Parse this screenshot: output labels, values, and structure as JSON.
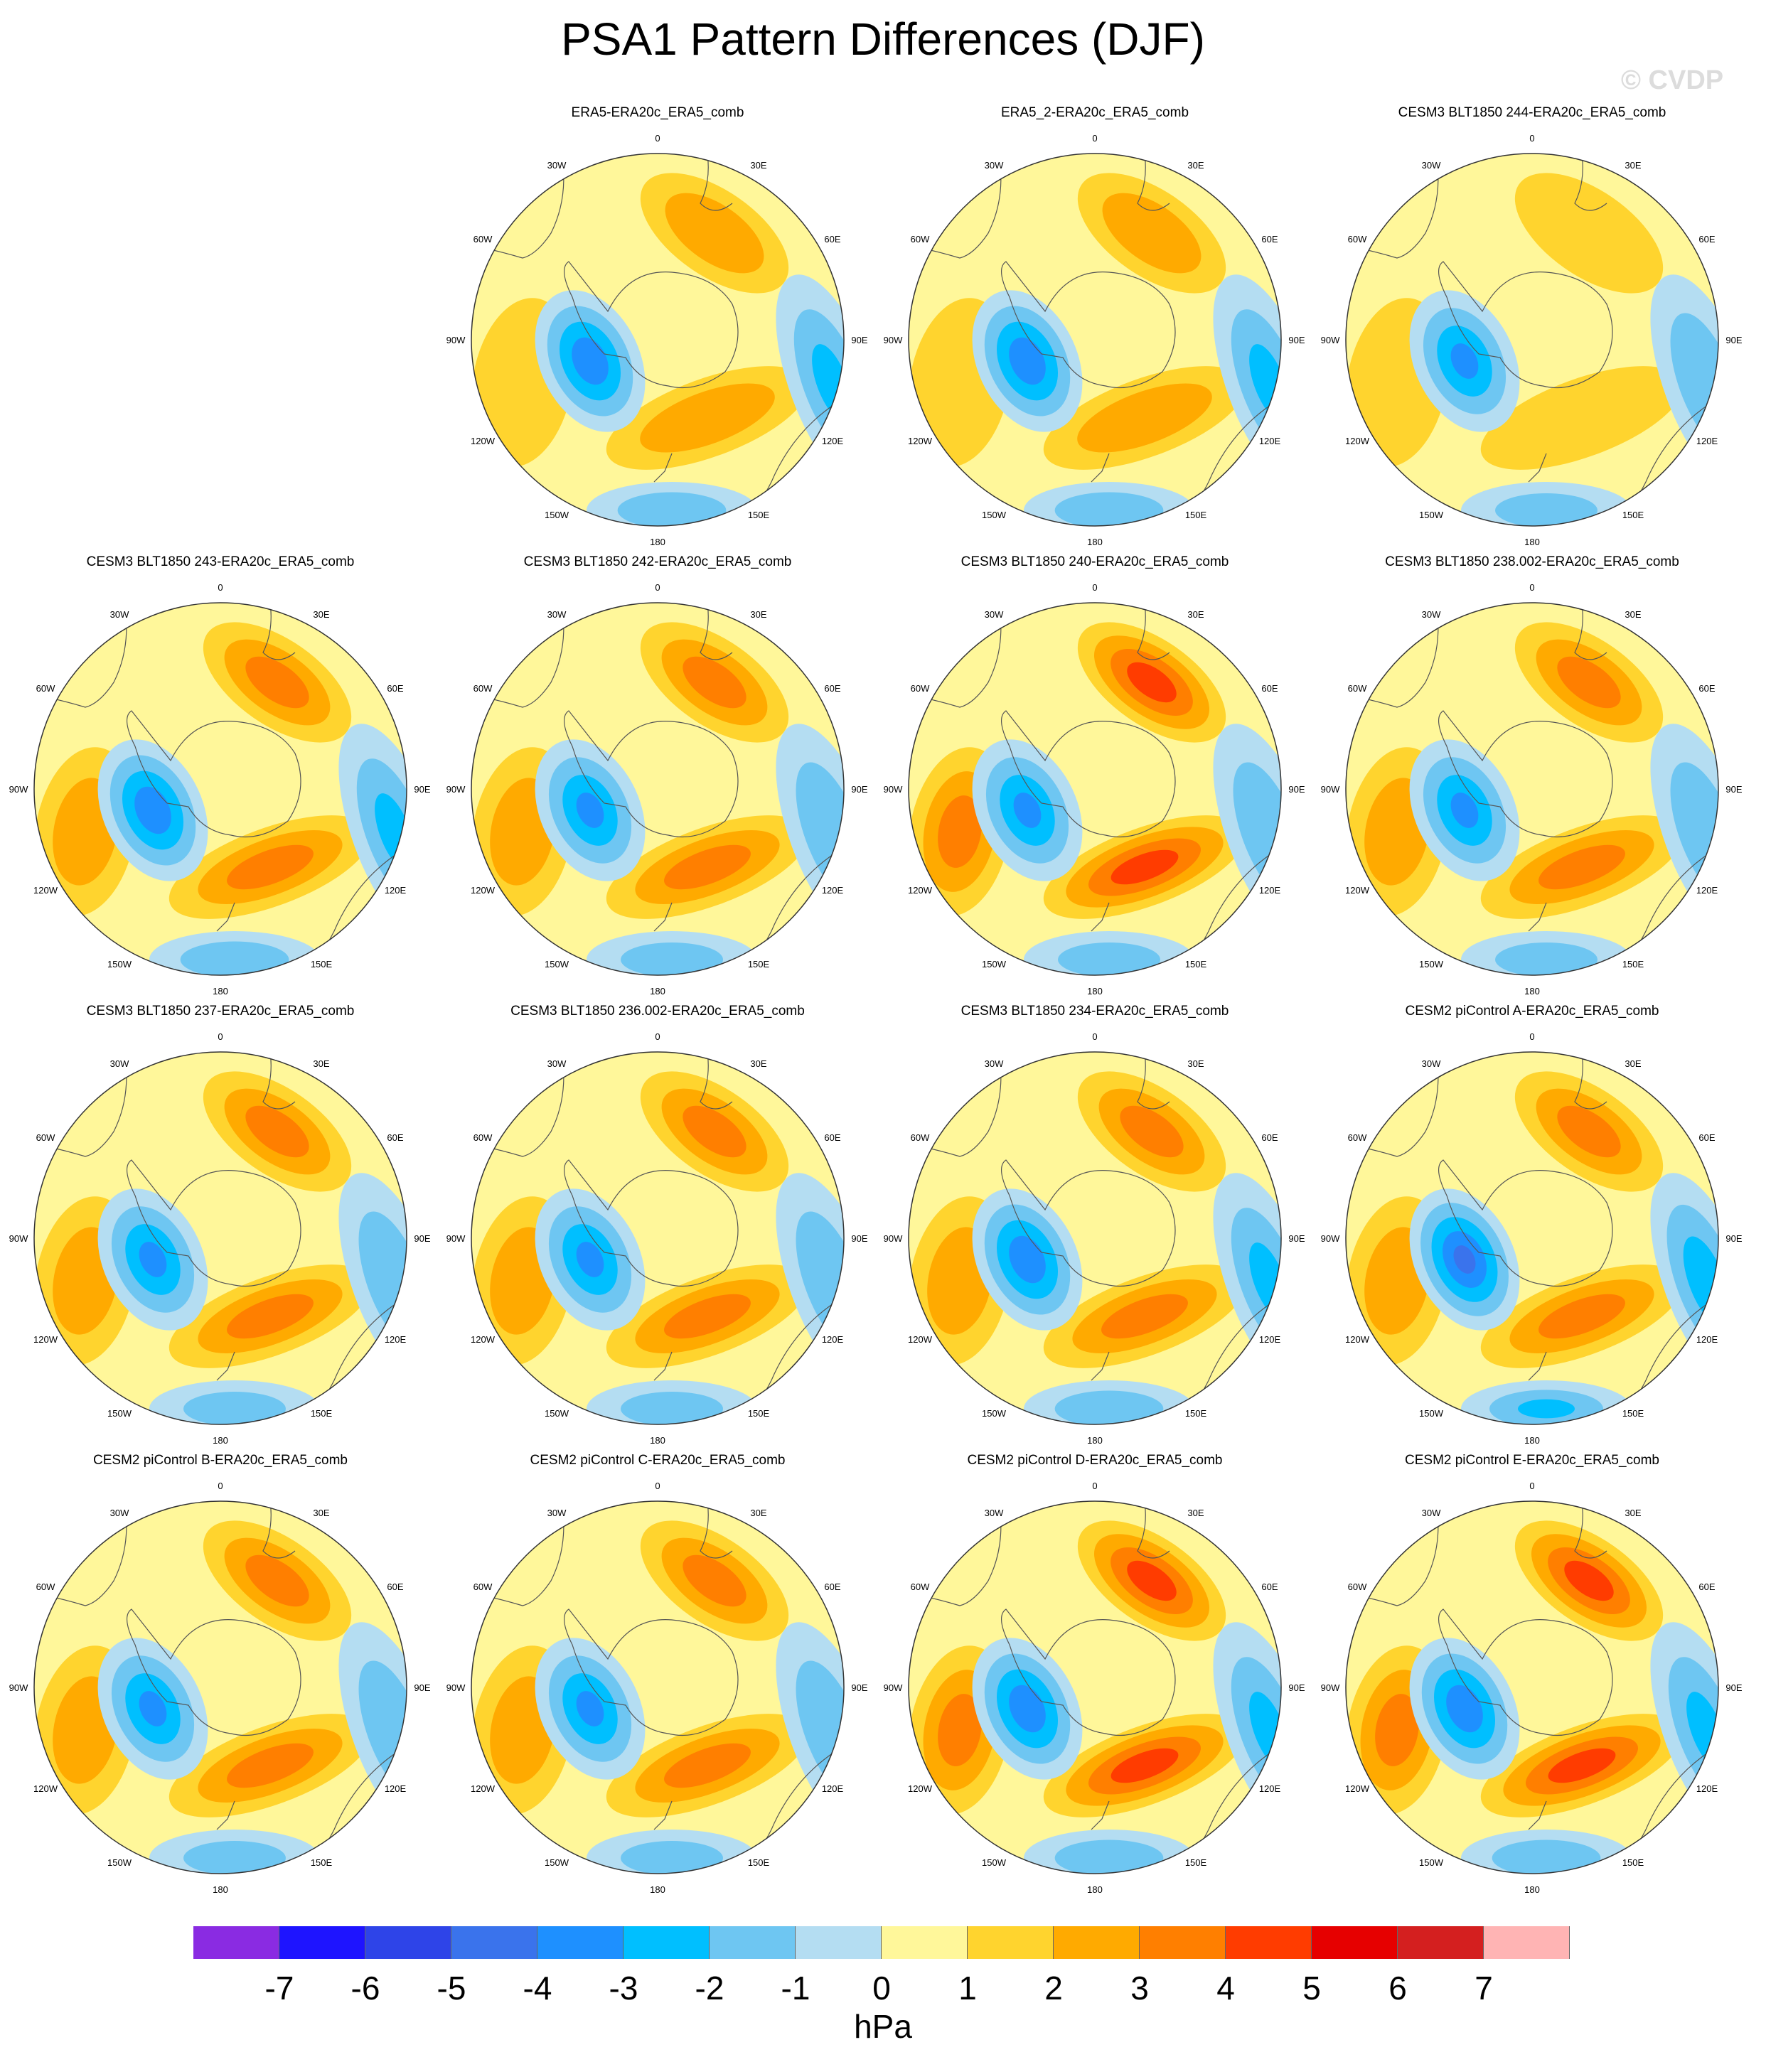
{
  "title": "PSA1 Pattern Differences (DJF)",
  "watermark": "© CVDP",
  "units": "hPa",
  "colorbar": {
    "colors": [
      "#8a2be2",
      "#1e14ff",
      "#2e44e8",
      "#3a73ec",
      "#1e90ff",
      "#00bfff",
      "#6ec6f2",
      "#b4ddf2",
      "#fff79a",
      "#ffd42e",
      "#ffaa00",
      "#ff7f00",
      "#ff3c00",
      "#e60000",
      "#d41f1f",
      "#ffb4b4"
    ],
    "labels": [
      "-7",
      "-6",
      "-5",
      "-4",
      "-3",
      "-2",
      "-1",
      "0",
      "1",
      "2",
      "3",
      "4",
      "5",
      "6",
      "7"
    ]
  },
  "longitude_labels": [
    "0",
    "30E",
    "60E",
    "90E",
    "120E",
    "150E",
    "180",
    "150W",
    "120W",
    "90W",
    "60W",
    "30W"
  ],
  "panels": [
    {
      "title": "ERA5-ERA20c_ERA5_comb",
      "neg": 3.5,
      "pos": 2.5
    },
    {
      "title": "ERA5_2-ERA20c_ERA5_comb",
      "neg": 3.5,
      "pos": 2.5
    },
    {
      "title": "CESM3 BLT1850 244-ERA20c_ERA5_comb",
      "neg": 3.0,
      "pos": 1.5
    },
    {
      "title": "CESM3 BLT1850 243-ERA20c_ERA5_comb",
      "neg": 3.5,
      "pos": 3.0
    },
    {
      "title": "CESM3 BLT1850 242-ERA20c_ERA5_comb",
      "neg": 3.0,
      "pos": 3.0
    },
    {
      "title": "CESM3 BLT1850 240-ERA20c_ERA5_comb",
      "neg": 3.0,
      "pos": 4.0
    },
    {
      "title": "CESM3 BLT1850 238.002-ERA20c_ERA5_comb",
      "neg": 3.0,
      "pos": 3.0
    },
    {
      "title": "CESM3 BLT1850 237-ERA20c_ERA5_comb",
      "neg": 3.0,
      "pos": 3.0
    },
    {
      "title": "CESM3 BLT1850 236.002-ERA20c_ERA5_comb",
      "neg": 3.0,
      "pos": 3.0
    },
    {
      "title": "CESM3 BLT1850 234-ERA20c_ERA5_comb",
      "neg": 3.5,
      "pos": 3.0
    },
    {
      "title": "CESM2 piControl A-ERA20c_ERA5_comb",
      "neg": 4.0,
      "pos": 3.0
    },
    {
      "title": "CESM2 piControl B-ERA20c_ERA5_comb",
      "neg": 3.0,
      "pos": 3.0
    },
    {
      "title": "CESM2 piControl C-ERA20c_ERA5_comb",
      "neg": 3.0,
      "pos": 3.0
    },
    {
      "title": "CESM2 piControl D-ERA20c_ERA5_comb",
      "neg": 3.5,
      "pos": 4.0
    },
    {
      "title": "CESM2 piControl E-ERA20c_ERA5_comb",
      "neg": 3.5,
      "pos": 4.0
    }
  ]
}
